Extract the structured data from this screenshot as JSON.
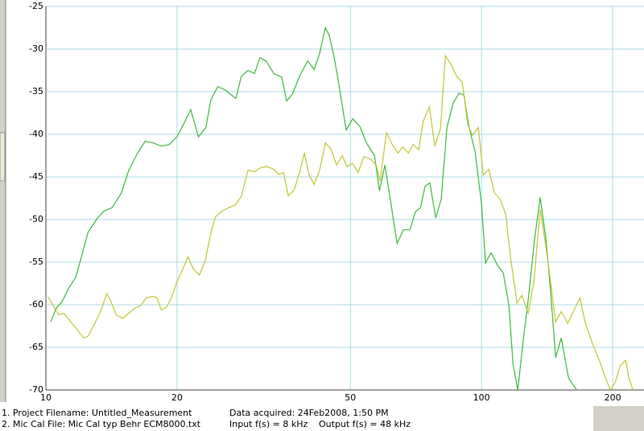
{
  "chart_data": {
    "type": "line",
    "xscale": "log",
    "grid": true,
    "xlim": [
      10,
      236
    ],
    "xticks": [
      10,
      20,
      50,
      100,
      200
    ],
    "ylim": [
      -70,
      -25
    ],
    "yticks": [
      -25,
      -30,
      -35,
      -40,
      -45,
      -50,
      -55,
      -60,
      -65,
      -70
    ],
    "series": [
      {
        "color": "#3cba3c",
        "x": [
          10.26,
          10.57,
          10.9,
          11.3,
          11.7,
          12.0,
          12.5,
          13.1,
          13.6,
          14.2,
          14.9,
          15.5,
          16.2,
          16.9,
          17.6,
          18.4,
          19.2,
          20.0,
          20.9,
          21.5,
          22.4,
          23.3,
          23.9,
          24.8,
          25.8,
          27.3,
          28.1,
          29.1,
          30.1,
          31.0,
          32.0,
          33.4,
          34.8,
          35.7,
          36.8,
          38.2,
          39.9,
          41.3,
          42.5,
          43.8,
          44.7,
          45.9,
          46.9,
          48.9,
          50.6,
          52.6,
          54.4,
          56.8,
          58.3,
          60.0,
          61.8,
          64.0,
          66.2,
          68.5,
          70.5,
          72.4,
          74.2,
          76.1,
          78.5,
          80.8,
          83.3,
          86.1,
          88.8,
          91.1,
          93.4,
          96.6,
          100,
          102.1,
          105.2,
          108.9,
          112.2,
          115.6,
          118.1,
          121.1,
          124.8,
          128.0,
          132.4,
          136.4,
          140.6,
          144.2,
          147.9,
          152.4,
          158.4,
          165.3
        ],
        "values": [
          -62.0,
          -60.4,
          -59.6,
          -58.0,
          -56.8,
          -54.8,
          -51.5,
          -49.9,
          -49.0,
          -48.6,
          -46.9,
          -44.2,
          -42.3,
          -40.8,
          -41.0,
          -41.4,
          -41.2,
          -40.3,
          -38.4,
          -37.1,
          -40.3,
          -39.2,
          -36.0,
          -34.4,
          -34.8,
          -35.8,
          -33.2,
          -32.5,
          -32.9,
          -31.0,
          -31.4,
          -32.9,
          -33.3,
          -36.1,
          -35.3,
          -33.2,
          -31.4,
          -32.4,
          -30.5,
          -27.5,
          -28.4,
          -31.0,
          -33.7,
          -39.5,
          -38.2,
          -39.1,
          -41.0,
          -42.5,
          -46.6,
          -43.6,
          -47.8,
          -52.8,
          -51.2,
          -51.2,
          -49.1,
          -48.6,
          -46.1,
          -45.7,
          -49.8,
          -47.6,
          -39.2,
          -36.3,
          -35.2,
          -35.4,
          -38.9,
          -42.0,
          -48.2,
          -55.1,
          -53.9,
          -55.4,
          -56.3,
          -60.1,
          -67.0,
          -70.0,
          -63.9,
          -59.4,
          -52.3,
          -47.4,
          -52.4,
          -58.7,
          -66.2,
          -63.9,
          -68.6,
          -70.0
        ]
      },
      {
        "color": "#c4c436",
        "x": [
          10.13,
          10.39,
          10.7,
          11.0,
          11.4,
          11.8,
          12.2,
          12.5,
          13.0,
          13.4,
          13.8,
          14.1,
          14.5,
          15.0,
          15.5,
          16.0,
          16.5,
          17.0,
          17.6,
          18.0,
          18.4,
          18.9,
          19.4,
          20.0,
          20.7,
          21.2,
          21.8,
          22.5,
          23.2,
          23.9,
          24.5,
          25.4,
          26.3,
          27.2,
          28.1,
          29.1,
          30.1,
          31.2,
          32.2,
          33.4,
          34.2,
          35.1,
          36.0,
          37.1,
          38.2,
          39.2,
          40.2,
          41.3,
          42.5,
          43.8,
          45.1,
          46.5,
          47.9,
          49.1,
          50.6,
          52.1,
          53.7,
          55.6,
          57.3,
          58.5,
          60.5,
          62.4,
          64.3,
          65.9,
          67.9,
          69.7,
          71.7,
          73.6,
          75.9,
          78.1,
          80.5,
          82.6,
          85.1,
          87.7,
          90.3,
          93.0,
          95.4,
          98.3,
          100.9,
          103.9,
          107.1,
          110.3,
          113.6,
          116.5,
          120.6,
          123.7,
          128.0,
          131.9,
          136.4,
          140.6,
          144.2,
          147.9,
          152.4,
          157.7,
          162.4,
          168.1,
          173.2,
          179.9,
          186.9,
          192.6,
          197.6,
          202.7,
          207.9,
          214.2,
          217.9,
          222.6
        ],
        "values": [
          -59.1,
          -60.1,
          -61.2,
          -61.0,
          -62.0,
          -62.9,
          -63.9,
          -63.7,
          -62.0,
          -60.6,
          -58.7,
          -59.6,
          -61.2,
          -61.6,
          -61.0,
          -60.4,
          -60.1,
          -59.2,
          -59.0,
          -59.2,
          -60.6,
          -60.3,
          -59.2,
          -57.3,
          -55.6,
          -54.4,
          -55.8,
          -56.5,
          -54.9,
          -51.6,
          -49.7,
          -49.0,
          -48.6,
          -48.3,
          -47.3,
          -44.2,
          -44.4,
          -43.9,
          -43.8,
          -44.1,
          -44.7,
          -44.5,
          -47.2,
          -46.6,
          -44.5,
          -42.2,
          -44.8,
          -45.9,
          -44.2,
          -41.0,
          -41.7,
          -43.6,
          -42.5,
          -43.8,
          -43.4,
          -44.5,
          -42.6,
          -42.9,
          -43.6,
          -45.5,
          -39.8,
          -41.2,
          -42.2,
          -41.5,
          -42.2,
          -41.2,
          -41.8,
          -38.4,
          -36.8,
          -41.4,
          -39.3,
          -30.8,
          -31.8,
          -33.2,
          -33.9,
          -38.9,
          -40.1,
          -39.2,
          -44.8,
          -44.1,
          -46.9,
          -47.6,
          -49.4,
          -54.4,
          -59.8,
          -58.9,
          -61.0,
          -57.3,
          -48.8,
          -53.3,
          -57.5,
          -62.0,
          -60.8,
          -62.2,
          -60.8,
          -59.2,
          -62.2,
          -64.6,
          -66.7,
          -68.6,
          -70.0,
          -69.1,
          -67.2,
          -66.5,
          -68.6,
          -70.0
        ]
      }
    ]
  },
  "footer": {
    "line1": [
      "1. Project Filename: Untitled_Measurement",
      "Data acquired: 24Feb2008, 1:50 PM"
    ],
    "line2": [
      "2. Mic Cal File: Mic Cal typ Behr ECM8000.txt",
      "Input f(s) = 8 kHz",
      "Output f(s) = 48 kHz"
    ]
  }
}
